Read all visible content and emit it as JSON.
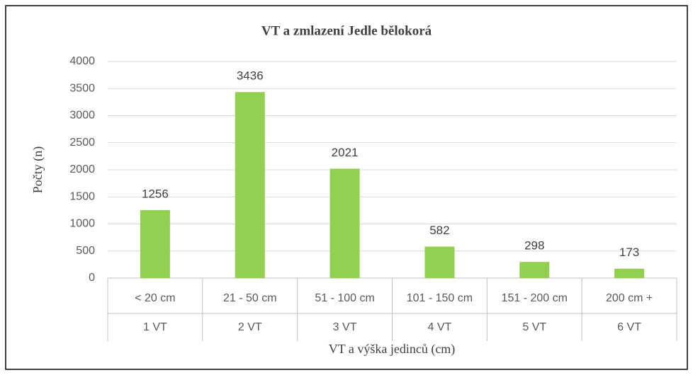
{
  "chart_data": {
    "type": "bar",
    "title": "VT a zmlazení Jedle bělokorá",
    "categories": [
      "< 20 cm",
      "21 - 50 cm",
      "51 - 100 cm",
      "101 - 150 cm",
      "151 - 200 cm",
      "200 cm +"
    ],
    "subcategories": [
      "1 VT",
      "2 VT",
      "3 VT",
      "4 VT",
      "5 VT",
      "6 VT"
    ],
    "values": [
      1256,
      3436,
      2021,
      582,
      298,
      173
    ],
    "color": "#92d050",
    "ylim": [
      0,
      4000
    ],
    "yticks": [
      0,
      500,
      1000,
      1500,
      2000,
      2500,
      3000,
      3500,
      4000
    ],
    "grid": true,
    "xlabel": "VT a výška jedinců (cm)",
    "ylabel": "Počty (n)"
  }
}
